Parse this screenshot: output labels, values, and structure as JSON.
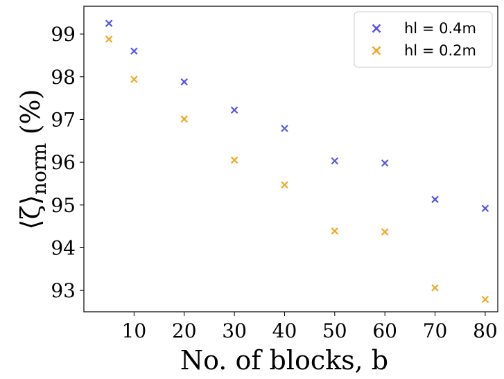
{
  "chart_data": {
    "type": "scatter",
    "xlabel": "No. of blocks, b",
    "ylabel": {
      "prefix": "⟨ζ⟩",
      "subscript": "norm",
      "suffix": " (%)"
    },
    "xlim": [
      0,
      82.5
    ],
    "ylim": [
      92.5,
      99.65
    ],
    "x_ticks": [
      10,
      20,
      30,
      40,
      50,
      60,
      70,
      80
    ],
    "y_ticks": [
      93,
      94,
      95,
      96,
      97,
      98,
      99
    ],
    "grid": false,
    "legend_position": "top-right",
    "marker": "x",
    "series": [
      {
        "name": "hl = 0.4m",
        "color": "#5555ee",
        "x": [
          5,
          10,
          20,
          30,
          40,
          50,
          60,
          70,
          80
        ],
        "y": [
          99.25,
          98.6,
          97.88,
          97.22,
          96.79,
          96.03,
          95.98,
          95.13,
          94.92
        ]
      },
      {
        "name": "hl = 0.2m",
        "color": "#f5a623",
        "x": [
          5,
          10,
          20,
          30,
          40,
          50,
          60,
          70,
          80
        ],
        "y": [
          98.88,
          97.94,
          97.01,
          96.05,
          95.47,
          94.39,
          94.37,
          93.06,
          92.79
        ]
      }
    ]
  }
}
